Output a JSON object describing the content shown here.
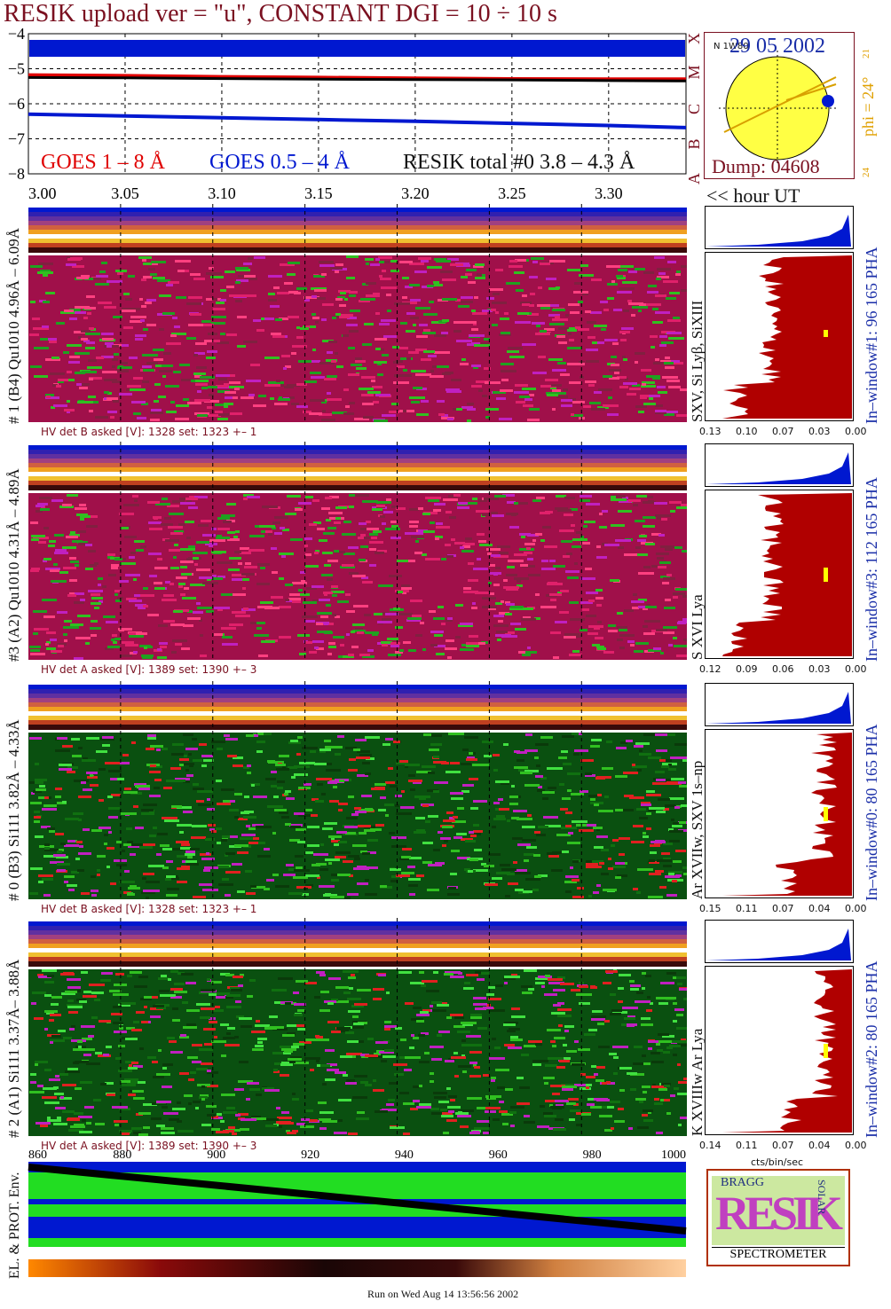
{
  "header": {
    "title": "RESIK upload ver = \"u\", CONSTANT  DGI =  10 ÷  10 s",
    "goes_18": "GOES 1 – 8 Å",
    "goes_054": "GOES 0.5 – 4 Å",
    "resik_total": "RESIK total #0  3.8 – 4.3 Å"
  },
  "sun_box": {
    "date": "29 05 2002",
    "dump": "Dump: 04608",
    "phi": "phi = 24°",
    "small_top": "21",
    "small_bottom": "24",
    "n_label": "N 1W80"
  },
  "flux_axis": {
    "y_ticks": [
      "−4",
      "−5",
      "−6",
      "−7",
      "−8"
    ],
    "class_letters": [
      "X",
      "M",
      "C",
      "B",
      "A"
    ]
  },
  "time_axis": {
    "ticks": [
      "3.00",
      "3.05",
      "3.10",
      "3.15",
      "3.20",
      "3.25",
      "3.30"
    ],
    "unit": "<< hour UT"
  },
  "channels": [
    {
      "left_label": "# 1 (B4) Qu1010 4.96Å – 6.09Å",
      "line_label": "SXV, Si Lyβ, SiXIII",
      "right_label": "In–window#1:  96 165  PHA",
      "hv": "HV det B asked [V]:  1328  set:  1323  +–    1",
      "pha_ticks": [
        "0.13",
        "0.10",
        "0.07",
        "0.03",
        "0.00"
      ]
    },
    {
      "left_label": "#3 (A2) Qu1010  4.31Å – 4.89Å",
      "line_label": "S XVI Lya",
      "right_label": "In–window#3:  112 165  PHA",
      "hv": "HV det A asked [V]:  1389  set:  1390  +–     3",
      "pha_ticks": [
        "0.12",
        "0.09",
        "0.06",
        "0.03",
        "0.00"
      ]
    },
    {
      "left_label": "# 0 (B3) Si111  3.82Å – 4.33Å",
      "line_label": "Ar XVIIw,  SXV 1s–np",
      "right_label": "In–window#0:  80 165  PHA",
      "hv": "HV det B asked [V]:  1328  set:  1323  +–    1",
      "pha_ticks": [
        "0.15",
        "0.11",
        "0.07",
        "0.04",
        "0.00"
      ]
    },
    {
      "left_label": "# 2 (A1) Si111  3.37Å– 3.88Å",
      "line_label": "K XVIIIw  Ar Lya",
      "right_label": "In–window#2:  80 165  PHA",
      "hv": "HV det A asked [V]:  1389  set:  1390  +–     3",
      "pha_ticks": [
        "0.14",
        "0.11",
        "0.07",
        "0.04",
        "0.00"
      ]
    }
  ],
  "pha_unit": "cts/bin/sec",
  "env": {
    "label": "EL. & PROT. Env.",
    "x_ticks": [
      "860",
      "880",
      "900",
      "920",
      "940",
      "960",
      "980",
      "1000"
    ]
  },
  "logo": {
    "letters": "RESIK",
    "bragg": "BRAGG",
    "solar": "SOLAR",
    "spectrometer": "SPECTROMETER"
  },
  "footer": "Run on Wed Aug 14 13:56:56 2002",
  "colors": {
    "title": "#7a1020",
    "goes_red": "#e00000",
    "goes_blue": "#0018d0",
    "sun_yellow": "#ffff44",
    "date_blue": "#1a2ea8",
    "phi_orange": "#e0a000",
    "pha_fill": "#b00000"
  },
  "chart_data": {
    "type": "line",
    "title": "RESIK upload ver = \"u\", CONSTANT  DGI =  10 ÷  10 s",
    "xlabel": "<< hour UT",
    "xlim": [
      3.0,
      3.34
    ],
    "ylim": [
      -8,
      -4
    ],
    "series": [
      {
        "name": "GOES 1 – 8 Å",
        "x": [
          3.0,
          3.05,
          3.1,
          3.15,
          3.2,
          3.25,
          3.3,
          3.34
        ],
        "values": [
          -5.18,
          -5.2,
          -5.23,
          -5.25,
          -5.27,
          -5.29,
          -5.3,
          -5.3
        ]
      },
      {
        "name": "GOES 0.5 – 4 Å",
        "x": [
          3.0,
          3.05,
          3.1,
          3.15,
          3.2,
          3.25,
          3.3,
          3.34
        ],
        "values": [
          -6.3,
          -6.35,
          -6.4,
          -6.45,
          -6.5,
          -6.56,
          -6.62,
          -6.68
        ]
      },
      {
        "name": "RESIK total #0  3.8 – 4.3 Å",
        "x": [
          3.0,
          3.05,
          3.1,
          3.15,
          3.2,
          3.25,
          3.3,
          3.34
        ],
        "values": [
          -5.25,
          -5.26,
          -5.28,
          -5.3,
          -5.31,
          -5.32,
          -5.34,
          -5.35
        ]
      }
    ]
  }
}
